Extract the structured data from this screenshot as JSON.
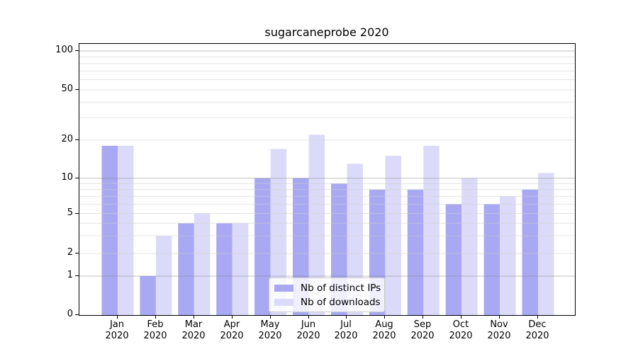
{
  "chart": {
    "title": "sugarcaneprobe 2020",
    "legend": {
      "items": [
        {
          "label": "Nb of distinct IPs"
        },
        {
          "label": "Nb of downloads"
        }
      ]
    }
  },
  "chart_data": {
    "type": "bar",
    "title": "sugarcaneprobe 2020",
    "categories": [
      "Jan 2020",
      "Feb 2020",
      "Mar 2020",
      "Apr 2020",
      "May 2020",
      "Jun 2020",
      "Jul 2020",
      "Aug 2020",
      "Sep 2020",
      "Oct 2020",
      "Nov 2020",
      "Dec 2020"
    ],
    "month_labels": [
      "Jan",
      "Feb",
      "Mar",
      "Apr",
      "May",
      "Jun",
      "Jul",
      "Aug",
      "Sep",
      "Oct",
      "Nov",
      "Dec"
    ],
    "year_label": "2020",
    "series": [
      {
        "name": "Nb of distinct IPs",
        "color": "#a8a8f3",
        "values": [
          18,
          1,
          4,
          4,
          10,
          10,
          9,
          8,
          8,
          6,
          6,
          8
        ]
      },
      {
        "name": "Nb of downloads",
        "color": "#dbdbf9",
        "values": [
          18,
          3,
          5,
          4,
          17,
          22,
          13,
          15,
          18,
          10,
          7,
          11
        ]
      }
    ],
    "yscale": "log-like with linear segment below 1",
    "yticks": [
      100,
      50,
      20,
      10,
      5,
      2,
      1,
      0
    ],
    "ytick_labels": [
      "100",
      "50",
      "20",
      "10",
      "5",
      "2",
      "1",
      "0"
    ],
    "minor_grid_values": [
      2,
      3,
      4,
      5,
      6,
      7,
      8,
      9,
      20,
      30,
      40,
      50,
      60,
      70,
      80,
      90
    ],
    "major_grid_values": [
      1,
      10,
      100
    ],
    "ylim": [
      0,
      112
    ],
    "grid": "horizontal",
    "legend_position": "lower center",
    "colors": {
      "grid_major": "#b3b3b3",
      "grid_minor": "#e4e4e4",
      "spine": "#000000",
      "text": "#000000",
      "legend_border": "#cccccc"
    }
  }
}
